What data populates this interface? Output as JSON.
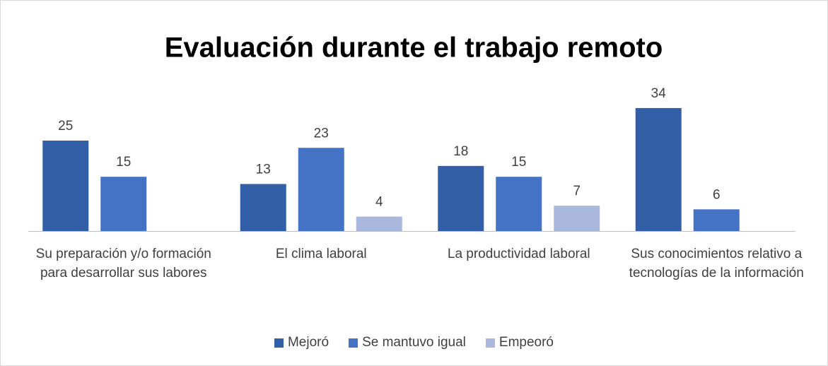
{
  "chart_data": {
    "type": "bar",
    "title": "Evaluación durante el trabajo remoto",
    "categories": [
      "Su preparación y/o formación para desarrollar sus labores",
      "El clima laboral",
      "La productividad laboral",
      "Sus conocimientos relativo a tecnologías de la información"
    ],
    "series": [
      {
        "name": "Mejoró",
        "color": "#335ea8",
        "values": [
          25,
          13,
          18,
          34
        ]
      },
      {
        "name": "Se mantuvo igual",
        "color": "#4472c4",
        "values": [
          15,
          23,
          15,
          6
        ]
      },
      {
        "name": "Empeoró",
        "color": "#a9b8dc",
        "values": [
          null,
          4,
          7,
          null
        ]
      }
    ],
    "legend": "bottom"
  }
}
